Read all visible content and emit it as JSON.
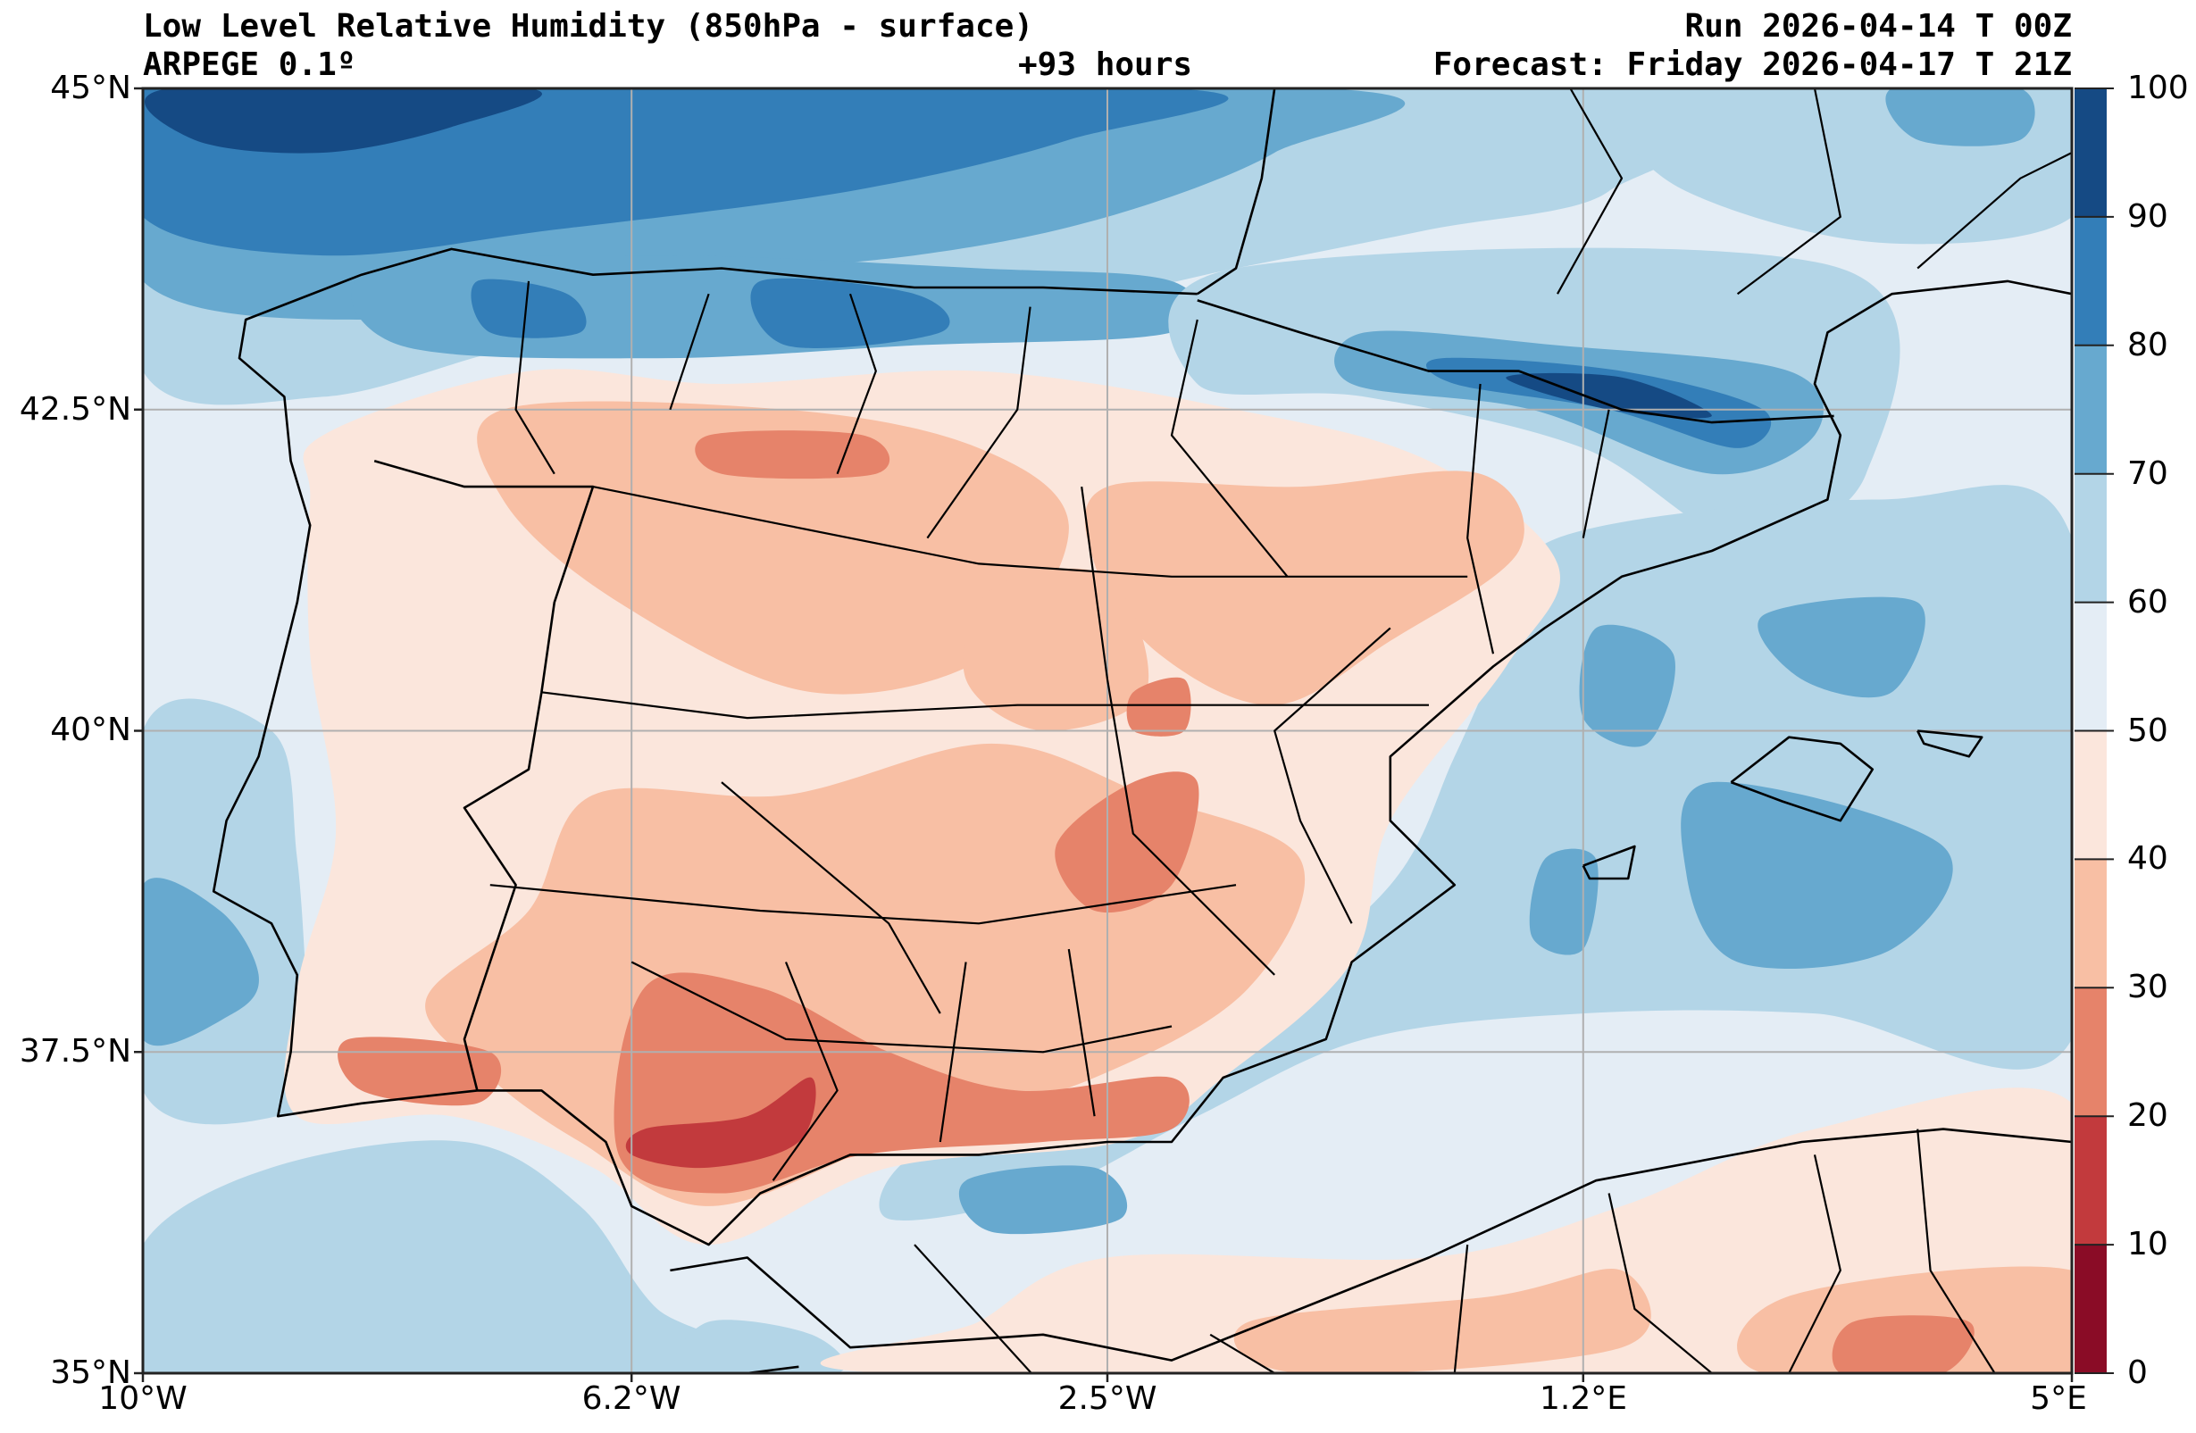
{
  "header": {
    "title": "Low Level Relative Humidity (850hPa - surface)",
    "model": "ARPEGE 0.1º",
    "lead_time": "+93 hours",
    "run": "Run 2026-04-14 T 00Z",
    "forecast": "Forecast: Friday 2026-04-17 T 21Z"
  },
  "chart_data": {
    "type": "heatmap",
    "title": "Low Level Relative Humidity (850hPa - surface)",
    "variable": "Relative Humidity",
    "extent": {
      "lon": [
        -10,
        5
      ],
      "lat": [
        35,
        45
      ]
    },
    "x_ticks": [
      {
        "value": -10,
        "label": "10°W"
      },
      {
        "value": -6.2,
        "label": "6.2°W"
      },
      {
        "value": -2.5,
        "label": "2.5°W"
      },
      {
        "value": 1.2,
        "label": "1.2°E"
      },
      {
        "value": 5,
        "label": "5°E"
      }
    ],
    "y_ticks": [
      {
        "value": 45,
        "label": "45°N"
      },
      {
        "value": 42.5,
        "label": "42.5°N"
      },
      {
        "value": 40,
        "label": "40°N"
      },
      {
        "value": 37.5,
        "label": "37.5°N"
      },
      {
        "value": 35,
        "label": "35°N"
      }
    ],
    "grid": true,
    "colorbar": {
      "placement": "right",
      "range": [
        0,
        100
      ],
      "ticks": [
        "0",
        "10",
        "20",
        "30",
        "40",
        "50",
        "60",
        "70",
        "80",
        "90",
        "100"
      ],
      "levels": [
        {
          "from": 0,
          "to": 10,
          "color": "#8a0c26"
        },
        {
          "from": 10,
          "to": 20,
          "color": "#c23a3d"
        },
        {
          "from": 20,
          "to": 30,
          "color": "#e6836a"
        },
        {
          "from": 30,
          "to": 40,
          "color": "#f8bfa4"
        },
        {
          "from": 40,
          "to": 50,
          "color": "#fbe6dc"
        },
        {
          "from": 50,
          "to": 60,
          "color": "#e4edf5"
        },
        {
          "from": 60,
          "to": 70,
          "color": "#b3d5e7"
        },
        {
          "from": 70,
          "to": 80,
          "color": "#67a9cf"
        },
        {
          "from": 80,
          "to": 90,
          "color": "#337eb8"
        },
        {
          "from": 90,
          "to": 100,
          "color": "#154a84"
        }
      ]
    }
  }
}
